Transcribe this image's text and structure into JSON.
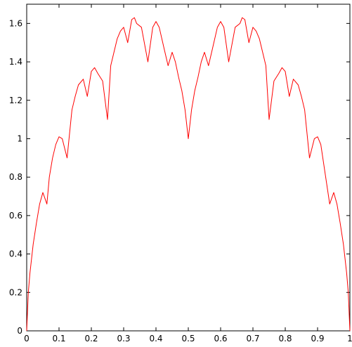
{
  "chart_data": {
    "type": "line",
    "title": "",
    "xlabel": "",
    "ylabel": "",
    "xlim": [
      0,
      1
    ],
    "ylim": [
      0,
      1.7
    ],
    "grid": false,
    "legend": "none",
    "x_ticks": [
      0,
      0.1,
      0.2,
      0.3,
      0.4,
      0.5,
      0.6,
      0.7,
      0.8,
      0.9,
      1
    ],
    "x_tick_labels": [
      "0",
      "0.1",
      "0.2",
      "0.3",
      "0.4",
      "0.5",
      "0.6",
      "0.7",
      "0.8",
      "0.9",
      "1"
    ],
    "y_ticks": [
      0,
      0.2,
      0.4,
      0.6,
      0.8,
      1,
      1.2,
      1.4,
      1.6
    ],
    "y_tick_labels": [
      "0",
      "0.2",
      "0.4",
      "0.6",
      "0.8",
      "1",
      "1.2",
      "1.4",
      "1.6"
    ],
    "series": [
      {
        "color": "#ff0000",
        "x": [
          0,
          0.005,
          0.01,
          0.02,
          0.03,
          0.04,
          0.05,
          0.0625,
          0.07,
          0.08,
          0.09,
          0.1,
          0.11,
          0.125,
          0.14,
          0.15,
          0.16,
          0.175,
          0.1875,
          0.2,
          0.21,
          0.22,
          0.235,
          0.25,
          0.26,
          0.27,
          0.28,
          0.29,
          0.3,
          0.3125,
          0.325,
          0.3333,
          0.34,
          0.355,
          0.375,
          0.39,
          0.4,
          0.41,
          0.425,
          0.4375,
          0.45,
          0.46,
          0.47,
          0.48,
          0.49,
          0.5,
          0.51,
          0.52,
          0.53,
          0.54,
          0.55,
          0.5625,
          0.575,
          0.59,
          0.6,
          0.61,
          0.625,
          0.645,
          0.66,
          0.6667,
          0.675,
          0.6875,
          0.7,
          0.71,
          0.72,
          0.73,
          0.74,
          0.75,
          0.765,
          0.78,
          0.79,
          0.8,
          0.8125,
          0.825,
          0.84,
          0.85,
          0.86,
          0.875,
          0.89,
          0.9,
          0.91,
          0.9375,
          0.95,
          0.96,
          0.97,
          0.98,
          0.99,
          0.995,
          1
        ],
        "y": [
          0,
          0.2,
          0.3,
          0.45,
          0.56,
          0.66,
          0.72,
          0.66,
          0.8,
          0.9,
          0.97,
          1.01,
          1.0,
          0.9,
          1.15,
          1.22,
          1.28,
          1.31,
          1.22,
          1.35,
          1.37,
          1.34,
          1.3,
          1.1,
          1.38,
          1.45,
          1.52,
          1.56,
          1.58,
          1.5,
          1.62,
          1.63,
          1.6,
          1.58,
          1.4,
          1.58,
          1.61,
          1.58,
          1.47,
          1.38,
          1.45,
          1.4,
          1.32,
          1.25,
          1.15,
          1.0,
          1.15,
          1.25,
          1.32,
          1.4,
          1.45,
          1.38,
          1.47,
          1.58,
          1.61,
          1.58,
          1.4,
          1.58,
          1.6,
          1.63,
          1.62,
          1.5,
          1.58,
          1.56,
          1.52,
          1.45,
          1.38,
          1.1,
          1.3,
          1.34,
          1.37,
          1.35,
          1.22,
          1.31,
          1.28,
          1.22,
          1.15,
          0.9,
          1.0,
          1.01,
          0.97,
          0.66,
          0.72,
          0.66,
          0.56,
          0.45,
          0.3,
          0.2,
          0
        ]
      }
    ]
  }
}
